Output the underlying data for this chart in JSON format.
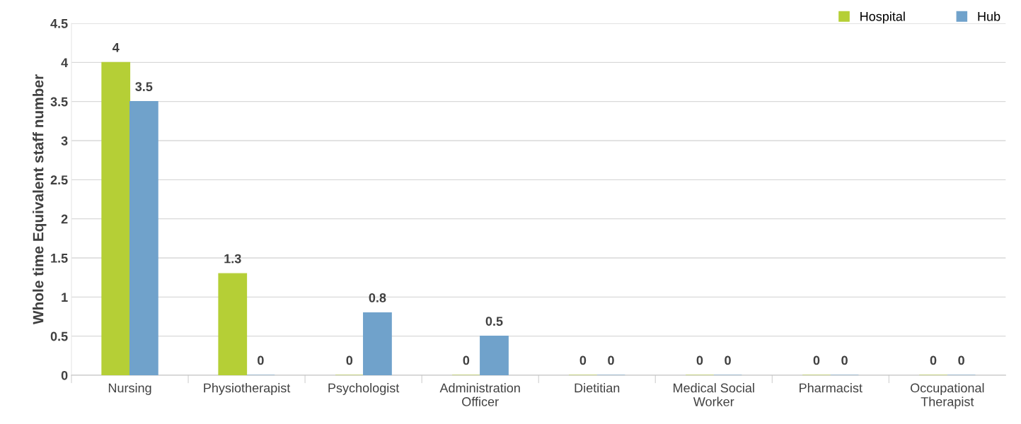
{
  "chart_data": {
    "type": "bar",
    "ylabel": "Whole time Equivalent staff number",
    "categories": [
      "Nursing",
      "Physiotherapist",
      "Psychologist",
      "Administration\nOfficer",
      "Dietitian",
      "Medical Social\nWorker",
      "Pharmacist",
      "Occupational\nTherapist"
    ],
    "series": [
      {
        "name": "Hospital",
        "color": "#b5cf36",
        "values": [
          4,
          1.3,
          0,
          0,
          0,
          0,
          0,
          0
        ]
      },
      {
        "name": "Hub",
        "color": "#70a2cb",
        "values": [
          3.5,
          0,
          0.8,
          0.5,
          0,
          0,
          0,
          0
        ]
      }
    ],
    "ylim": [
      0,
      4.5
    ],
    "yticks": [
      0,
      0.5,
      1,
      1.5,
      2,
      2.5,
      3,
      3.5,
      4,
      4.5
    ],
    "grid": "y",
    "legend": "top right",
    "data_labels": true
  }
}
